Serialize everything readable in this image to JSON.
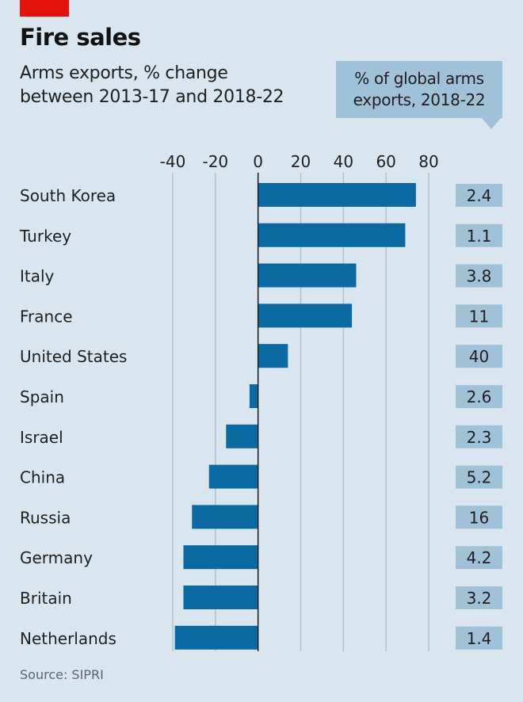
{
  "header": {
    "title": "Fire sales",
    "subtitle_line1": "Arms exports, % change",
    "subtitle_line2": "between 2013-17 and 2018-22",
    "callout_line1": "% of global arms",
    "callout_line2": "exports, 2018-22"
  },
  "footer": {
    "source": "Source: SIPRI"
  },
  "colors": {
    "bar": "#0b6aa2",
    "value_box": "#9fc2d7",
    "brand_red": "#e3120b",
    "background": "#d9e6ef",
    "grid": "#b2c2cc",
    "zero_line": "#1a1a1a"
  },
  "chart_data": {
    "type": "bar",
    "orientation": "horizontal",
    "title": "Fire sales",
    "subtitle": "Arms exports, % change between 2013-17 and 2018-22",
    "xlabel": "",
    "ylabel": "",
    "xlim": [
      -40,
      80
    ],
    "xticks": [
      -40,
      -20,
      0,
      20,
      40,
      60,
      80
    ],
    "grid": true,
    "categories": [
      "South Korea",
      "Turkey",
      "Italy",
      "France",
      "United States",
      "Spain",
      "Israel",
      "China",
      "Russia",
      "Germany",
      "Britain",
      "Netherlands"
    ],
    "series": [
      {
        "name": "Arms exports, % change 2013-17 to 2018-22",
        "values": [
          74,
          69,
          46,
          44,
          14,
          -4,
          -15,
          -23,
          -31,
          -35,
          -35,
          -39
        ]
      }
    ],
    "secondary_column": {
      "name": "% of global arms exports, 2018-22",
      "values": [
        "2.4",
        "1.1",
        "3.8",
        "11",
        "40",
        "2.6",
        "2.3",
        "5.2",
        "16",
        "4.2",
        "3.2",
        "1.4"
      ]
    },
    "source": "Source: SIPRI"
  }
}
